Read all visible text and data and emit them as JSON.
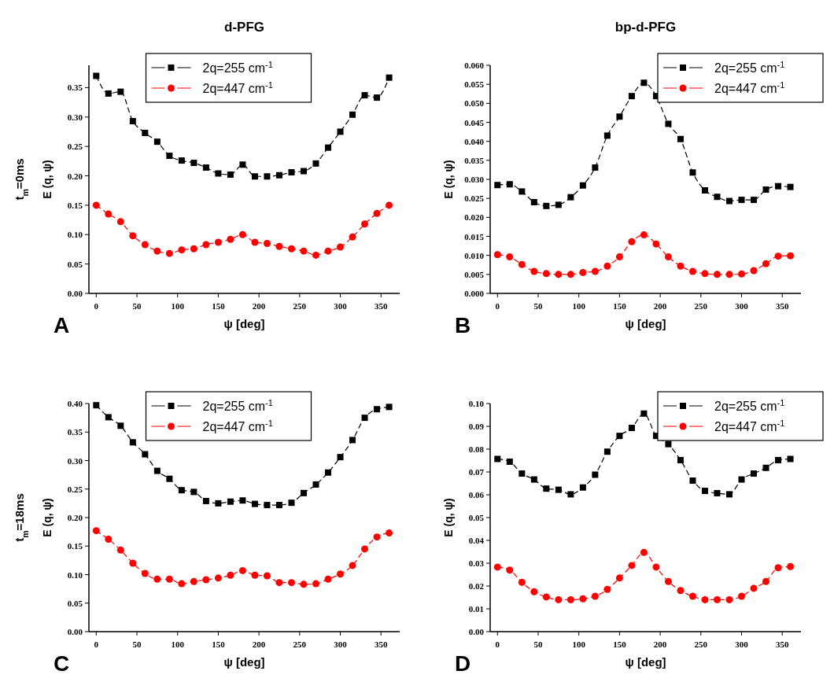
{
  "chart_data": [
    {
      "type": "line",
      "title": "d-PFG",
      "xlabel": "ψ [deg]",
      "ylabel": "E (q, ψ)",
      "annotations": [
        "A",
        "t$_{m}$=0ms"
      ],
      "x": [
        0,
        15,
        30,
        45,
        60,
        75,
        90,
        105,
        120,
        135,
        150,
        165,
        180,
        195,
        210,
        225,
        240,
        255,
        270,
        285,
        300,
        315,
        330,
        345,
        360
      ],
      "xlim": [
        -9,
        373
      ],
      "xticks": [
        0,
        50,
        100,
        150,
        200,
        250,
        300,
        350
      ],
      "ylim": [
        0,
        0.388
      ],
      "yticks": [
        {
          "value": 0,
          "label": "0.00"
        },
        {
          "value": 0.05,
          "label": "0.05"
        },
        {
          "value": 0.1,
          "label": "0.10"
        },
        {
          "value": 0.15,
          "label": "0.15"
        },
        {
          "value": 0.2,
          "label": "0.20"
        },
        {
          "value": 0.25,
          "label": "0.25"
        },
        {
          "value": 0.3,
          "label": "0.30"
        },
        {
          "value": 0.35,
          "label": "0.35"
        }
      ],
      "legend": "top",
      "line_style": "dashed",
      "grid": false,
      "series": [
        {
          "name": "2q=255 cm$^{-1}$",
          "color": "#000000",
          "marker": "square",
          "values": [
            0.37,
            0.34,
            0.343,
            0.293,
            0.273,
            0.258,
            0.234,
            0.226,
            0.222,
            0.214,
            0.204,
            0.202,
            0.219,
            0.199,
            0.199,
            0.201,
            0.206,
            0.208,
            0.221,
            0.248,
            0.275,
            0.304,
            0.337,
            0.333,
            0.367
          ]
        },
        {
          "name": "2q=447 cm$^{-1}$",
          "color": "#ff0000",
          "marker": "circle",
          "values": [
            0.15,
            0.135,
            0.122,
            0.098,
            0.083,
            0.072,
            0.068,
            0.074,
            0.076,
            0.083,
            0.087,
            0.092,
            0.1,
            0.087,
            0.085,
            0.08,
            0.076,
            0.072,
            0.065,
            0.072,
            0.079,
            0.096,
            0.118,
            0.136,
            0.15
          ]
        }
      ]
    },
    {
      "type": "line",
      "title": "bp-d-PFG",
      "xlabel": "ψ [deg]",
      "ylabel": "E (q, ψ)",
      "annotations": [
        "B"
      ],
      "x": [
        0,
        15,
        30,
        45,
        60,
        75,
        90,
        105,
        120,
        135,
        150,
        165,
        180,
        195,
        210,
        225,
        240,
        255,
        270,
        285,
        300,
        315,
        330,
        345,
        360
      ],
      "xlim": [
        -9,
        373
      ],
      "xticks": [
        0,
        50,
        100,
        150,
        200,
        250,
        300,
        350
      ],
      "ylim": [
        0,
        0.06
      ],
      "yticks": [
        {
          "value": 0,
          "label": "0.000"
        },
        {
          "value": 0.005,
          "label": "0.005"
        },
        {
          "value": 0.01,
          "label": "0.010"
        },
        {
          "value": 0.015,
          "label": "0.015"
        },
        {
          "value": 0.02,
          "label": "0.020"
        },
        {
          "value": 0.025,
          "label": "0.025"
        },
        {
          "value": 0.03,
          "label": "0.030"
        },
        {
          "value": 0.035,
          "label": "0.035"
        },
        {
          "value": 0.04,
          "label": "0.040"
        },
        {
          "value": 0.045,
          "label": "0.045"
        },
        {
          "value": 0.05,
          "label": "0.050"
        },
        {
          "value": 0.055,
          "label": "0.055"
        },
        {
          "value": 0.06,
          "label": "0.060"
        }
      ],
      "legend": "top right",
      "line_style": "dashed",
      "grid": false,
      "series": [
        {
          "name": "2q=255 cm$^{-1}$",
          "color": "#000000",
          "marker": "square",
          "values": [
            0.0285,
            0.0287,
            0.0268,
            0.024,
            0.023,
            0.0233,
            0.0253,
            0.0284,
            0.0331,
            0.0415,
            0.0465,
            0.0519,
            0.0554,
            0.0519,
            0.0446,
            0.0406,
            0.0318,
            0.0271,
            0.0254,
            0.0243,
            0.0246,
            0.0246,
            0.0273,
            0.0282,
            0.028
          ]
        },
        {
          "name": "2q=447 cm$^{-1}$",
          "color": "#ff0000",
          "marker": "circle",
          "values": [
            0.0102,
            0.0096,
            0.0076,
            0.0058,
            0.0052,
            0.005,
            0.005,
            0.0055,
            0.0058,
            0.0072,
            0.0096,
            0.0136,
            0.0154,
            0.013,
            0.0096,
            0.0072,
            0.0058,
            0.0052,
            0.005,
            0.005,
            0.0051,
            0.006,
            0.0078,
            0.0098,
            0.0099
          ]
        }
      ]
    },
    {
      "type": "line",
      "xlabel": "ψ [deg]",
      "ylabel": "E (q, ψ)",
      "annotations": [
        "C",
        "t$_{m}$=18ms"
      ],
      "x": [
        0,
        15,
        30,
        45,
        60,
        75,
        90,
        105,
        120,
        135,
        150,
        165,
        180,
        195,
        210,
        225,
        240,
        255,
        270,
        285,
        300,
        315,
        330,
        345,
        360
      ],
      "xlim": [
        -9,
        373
      ],
      "xticks": [
        0,
        50,
        100,
        150,
        200,
        250,
        300,
        350
      ],
      "ylim": [
        0,
        0.4
      ],
      "yticks": [
        {
          "value": 0,
          "label": "0.00"
        },
        {
          "value": 0.05,
          "label": "0.05"
        },
        {
          "value": 0.1,
          "label": "0.10"
        },
        {
          "value": 0.15,
          "label": "0.15"
        },
        {
          "value": 0.2,
          "label": "0.20"
        },
        {
          "value": 0.25,
          "label": "0.25"
        },
        {
          "value": 0.3,
          "label": "0.30"
        },
        {
          "value": 0.35,
          "label": "0.35"
        },
        {
          "value": 0.4,
          "label": "0.40"
        }
      ],
      "legend": "top",
      "line_style": "dashed",
      "grid": false,
      "series": [
        {
          "name": "2q=255 cm$^{-1}$",
          "color": "#000000",
          "marker": "square",
          "values": [
            0.397,
            0.376,
            0.361,
            0.332,
            0.311,
            0.282,
            0.268,
            0.248,
            0.245,
            0.229,
            0.225,
            0.228,
            0.23,
            0.224,
            0.222,
            0.222,
            0.226,
            0.243,
            0.258,
            0.279,
            0.306,
            0.336,
            0.375,
            0.39,
            0.394
          ]
        },
        {
          "name": "2q=447 cm$^{-1}$",
          "color": "#ff0000",
          "marker": "circle",
          "values": [
            0.177,
            0.162,
            0.143,
            0.12,
            0.102,
            0.092,
            0.092,
            0.084,
            0.088,
            0.091,
            0.094,
            0.099,
            0.107,
            0.099,
            0.098,
            0.086,
            0.086,
            0.083,
            0.084,
            0.092,
            0.101,
            0.116,
            0.145,
            0.166,
            0.173
          ]
        }
      ]
    },
    {
      "type": "line",
      "xlabel": "ψ [deg]",
      "ylabel": "E (q, ψ)",
      "annotations": [
        "D"
      ],
      "x": [
        0,
        15,
        30,
        45,
        60,
        75,
        90,
        105,
        120,
        135,
        150,
        165,
        180,
        195,
        210,
        225,
        240,
        255,
        270,
        285,
        300,
        315,
        330,
        345,
        360
      ],
      "xlim": [
        -9,
        373
      ],
      "xticks": [
        0,
        50,
        100,
        150,
        200,
        250,
        300,
        350
      ],
      "ylim": [
        0,
        0.1
      ],
      "yticks": [
        {
          "value": 0,
          "label": "0.00"
        },
        {
          "value": 0.01,
          "label": "0.01"
        },
        {
          "value": 0.02,
          "label": "0.02"
        },
        {
          "value": 0.03,
          "label": "0.03"
        },
        {
          "value": 0.04,
          "label": "0.04"
        },
        {
          "value": 0.05,
          "label": "0.05"
        },
        {
          "value": 0.06,
          "label": "0.06"
        },
        {
          "value": 0.07,
          "label": "0.07"
        },
        {
          "value": 0.08,
          "label": "0.08"
        },
        {
          "value": 0.09,
          "label": "0.09"
        },
        {
          "value": 0.1,
          "label": "0.10"
        }
      ],
      "legend": "top right",
      "line_style": "dashed",
      "grid": false,
      "series": [
        {
          "name": "2q=255 cm$^{-1}$",
          "color": "#000000",
          "marker": "square",
          "values": [
            0.0757,
            0.0745,
            0.0693,
            0.0667,
            0.0627,
            0.0622,
            0.0602,
            0.0632,
            0.0688,
            0.0789,
            0.0858,
            0.0893,
            0.0956,
            0.0858,
            0.0822,
            0.0752,
            0.0662,
            0.0617,
            0.0607,
            0.0602,
            0.0667,
            0.0693,
            0.0718,
            0.0752,
            0.0757
          ]
        },
        {
          "name": "2q=447 cm$^{-1}$",
          "color": "#ff0000",
          "marker": "circle",
          "values": [
            0.0283,
            0.027,
            0.0216,
            0.0175,
            0.0152,
            0.014,
            0.014,
            0.0144,
            0.0155,
            0.0185,
            0.0235,
            0.029,
            0.0347,
            0.0283,
            0.022,
            0.018,
            0.0155,
            0.014,
            0.014,
            0.014,
            0.0155,
            0.019,
            0.022,
            0.028,
            0.0285
          ]
        }
      ]
    }
  ]
}
